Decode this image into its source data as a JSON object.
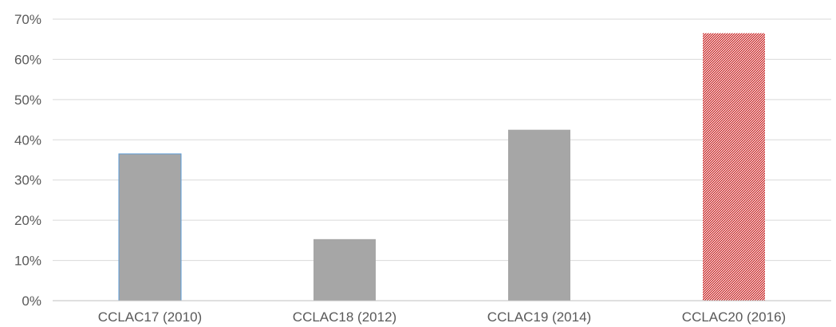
{
  "chart_data": {
    "type": "bar",
    "title": "",
    "xlabel": "",
    "ylabel": "",
    "categories": [
      "CCLAC17 (2010)",
      "CCLAC18 (2012)",
      "CCLAC19 (2014)",
      "CCLAC20 (2016)"
    ],
    "values": [
      36.5,
      15.3,
      42.5,
      66.5
    ],
    "ylim": [
      0,
      70
    ],
    "yticks": [
      0,
      10,
      20,
      30,
      40,
      50,
      60,
      70
    ],
    "ytick_labels": [
      "0%",
      "10%",
      "20%",
      "30%",
      "40%",
      "50%",
      "60%",
      "70%"
    ],
    "grid": true,
    "legend": "none",
    "bar_styles": [
      "solid",
      "solid",
      "solid",
      "hatched"
    ],
    "colors": {
      "bar": "#a6a6a6",
      "bar_outline_first": "#5b9bd5",
      "hatch": "#c00000",
      "grid": "#d9d9d9",
      "axis": "#bfbfbf",
      "text": "#595959"
    }
  }
}
